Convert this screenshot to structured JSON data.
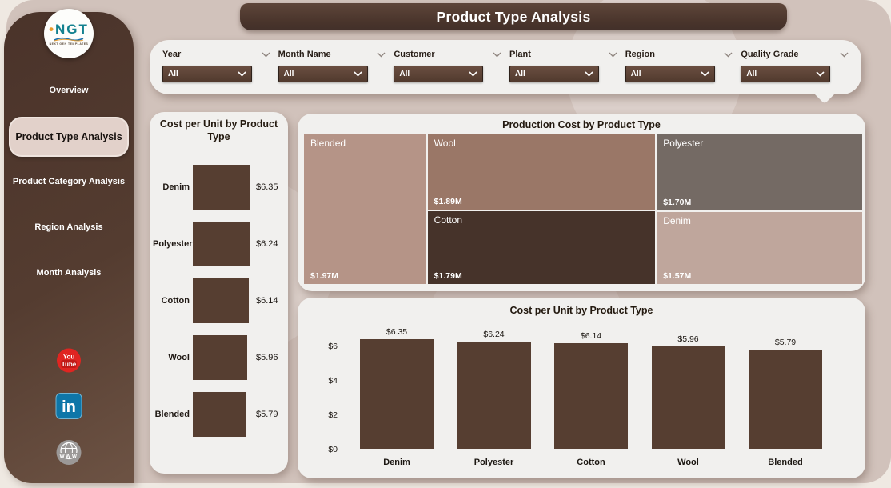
{
  "page": {
    "title": "Product Type Analysis"
  },
  "logo": {
    "text": "NGT",
    "subtext": "NEXT GEN TEMPLATES"
  },
  "sidebar": {
    "items": [
      {
        "label": "Overview",
        "active": false
      },
      {
        "label": "Product Type Analysis",
        "active": true
      },
      {
        "label": "Product Category Analysis",
        "active": false
      },
      {
        "label": "Region Analysis",
        "active": false
      },
      {
        "label": "Month Analysis",
        "active": false
      }
    ]
  },
  "filters": [
    {
      "label": "Year",
      "value": "All"
    },
    {
      "label": "Month Name",
      "value": "All"
    },
    {
      "label": "Customer",
      "value": "All"
    },
    {
      "label": "Plant",
      "value": "All"
    },
    {
      "label": "Region",
      "value": "All"
    },
    {
      "label": "Quality Grade",
      "value": "All"
    }
  ],
  "colors": {
    "accent_brown": "#563e31",
    "sidebar_brown": "#543c30",
    "board_bg": "#d1c2bb",
    "card_bg": "#f1f0ee",
    "active_pill": "#e2d1ca",
    "youtube_red": "#e02521",
    "linkedin_blue": "#0e76a8"
  },
  "chart_data": [
    {
      "type": "bar",
      "orientation": "horizontal",
      "title": "Cost per Unit by Product Type",
      "categories": [
        "Denim",
        "Polyester",
        "Cotton",
        "Wool",
        "Blended"
      ],
      "values": [
        6.35,
        6.24,
        6.14,
        5.96,
        5.79
      ],
      "labels": [
        "$6.35",
        "$6.24",
        "$6.14",
        "$5.96",
        "$5.79"
      ],
      "bar_color": "#563e31",
      "xmax": 6.35,
      "grid": false
    },
    {
      "type": "treemap",
      "title": "Production Cost by Product Type",
      "items": [
        {
          "name": "Blended",
          "value": 1.97,
          "label": "$1.97M",
          "color": "#b59487"
        },
        {
          "name": "Wool",
          "value": 1.89,
          "label": "$1.89M",
          "color": "#9a7767"
        },
        {
          "name": "Cotton",
          "value": 1.79,
          "label": "$1.79M",
          "color": "#46332a"
        },
        {
          "name": "Polyester",
          "value": 1.7,
          "label": "$1.70M",
          "color": "#746a64"
        },
        {
          "name": "Denim",
          "value": 1.57,
          "label": "$1.57M",
          "color": "#bfa69c"
        }
      ],
      "layout": {
        "columns": [
          [
            "Blended"
          ],
          [
            "Wool",
            "Cotton"
          ],
          [
            "Polyester",
            "Denim"
          ]
        ],
        "col_widths_pct": [
          22,
          41,
          37
        ]
      }
    },
    {
      "type": "bar",
      "orientation": "vertical",
      "title": "Cost per Unit by Product Type",
      "categories": [
        "Denim",
        "Polyester",
        "Cotton",
        "Wool",
        "Blended"
      ],
      "values": [
        6.35,
        6.24,
        6.14,
        5.96,
        5.79
      ],
      "labels": [
        "$6.35",
        "$6.24",
        "$6.14",
        "$5.96",
        "$5.79"
      ],
      "yticks": [
        "$6",
        "$4",
        "$2",
        "$0"
      ],
      "ytick_values": [
        6,
        4,
        2,
        0
      ],
      "ylim": [
        0,
        6.6
      ],
      "bar_color": "#563e31",
      "grid": false
    }
  ]
}
